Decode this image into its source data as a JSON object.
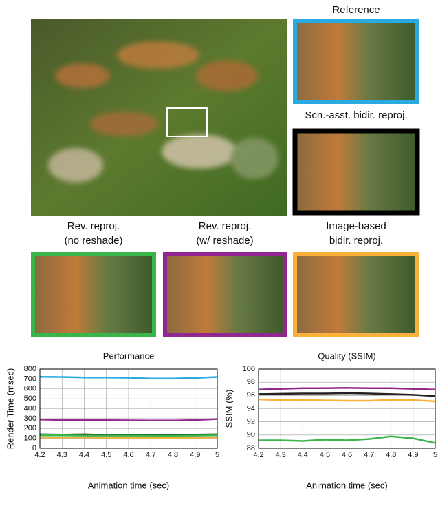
{
  "panels": {
    "reference": "Reference",
    "scene_assisted": "Scn.-asst. bidir. reproj.",
    "rev_no_reshade": [
      "Rev. reproj.",
      "(no reshade)"
    ],
    "rev_reshade": [
      "Rev. reproj.",
      "(w/ reshade)"
    ],
    "image_based": [
      "Image-based",
      "bidir. reproj."
    ]
  },
  "chart_data": [
    {
      "type": "line",
      "title": "Performance",
      "xlabel": "Animation time (sec)",
      "ylabel": "Render Time (msec)",
      "x": [
        4.2,
        4.3,
        4.4,
        4.5,
        4.6,
        4.7,
        4.8,
        4.9,
        5
      ],
      "xlim": [
        4.2,
        5
      ],
      "xticks": [
        4.2,
        4.3,
        4.4,
        4.5,
        4.6,
        4.7,
        4.8,
        4.9,
        5
      ],
      "ylim": [
        0,
        800
      ],
      "yticks": [
        0,
        100,
        200,
        300,
        400,
        500,
        600,
        700,
        800
      ],
      "grid": true,
      "series": [
        {
          "color": "#29abe2",
          "values": [
            722,
            720,
            715,
            715,
            712,
            705,
            705,
            710,
            720
          ]
        },
        {
          "color": "#92278f",
          "values": [
            290,
            285,
            283,
            283,
            282,
            280,
            280,
            285,
            295
          ]
        },
        {
          "color": "#222222",
          "values": [
            140,
            138,
            140,
            135,
            136,
            135,
            135,
            137,
            140
          ]
        },
        {
          "color": "#39b54a",
          "values": [
            130,
            130,
            128,
            128,
            128,
            127,
            127,
            128,
            130
          ]
        },
        {
          "color": "#fbb03b",
          "values": [
            110,
            110,
            110,
            108,
            108,
            108,
            108,
            108,
            110
          ]
        }
      ]
    },
    {
      "type": "line",
      "title": "Quality (SSIM)",
      "xlabel": "Animation time (sec)",
      "ylabel": "SSIM (%)",
      "x": [
        4.2,
        4.3,
        4.4,
        4.5,
        4.6,
        4.7,
        4.8,
        4.9,
        5
      ],
      "xlim": [
        4.2,
        5
      ],
      "xticks": [
        4.2,
        4.3,
        4.4,
        4.5,
        4.6,
        4.7,
        4.8,
        4.9,
        5
      ],
      "ylim": [
        88,
        100
      ],
      "yticks": [
        88,
        90,
        92,
        94,
        96,
        98,
        100
      ],
      "grid": true,
      "series": [
        {
          "color": "#92278f",
          "values": [
            96.9,
            97.0,
            97.1,
            97.1,
            97.15,
            97.1,
            97.1,
            97.0,
            96.9
          ]
        },
        {
          "color": "#222222",
          "values": [
            96.2,
            96.25,
            96.3,
            96.3,
            96.35,
            96.3,
            96.2,
            96.1,
            95.9
          ]
        },
        {
          "color": "#fbb03b",
          "values": [
            95.4,
            95.3,
            95.3,
            95.25,
            95.2,
            95.2,
            95.35,
            95.3,
            95.1
          ]
        },
        {
          "color": "#39b54a",
          "values": [
            89.2,
            89.2,
            89.1,
            89.3,
            89.2,
            89.4,
            89.8,
            89.5,
            88.8
          ]
        }
      ]
    }
  ]
}
